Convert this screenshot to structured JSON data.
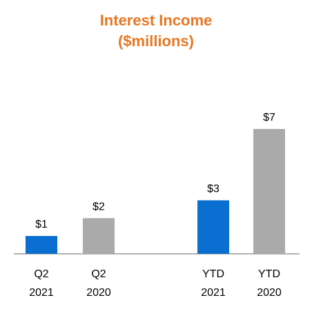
{
  "chart_data": {
    "type": "bar",
    "title": "Interest Income",
    "subtitle": "($millions)",
    "categories": [
      {
        "line1": "Q2",
        "line2": "2021"
      },
      {
        "line1": "Q2",
        "line2": "2020"
      },
      {
        "line1": "YTD",
        "line2": "2021"
      },
      {
        "line1": "YTD",
        "line2": "2020"
      }
    ],
    "values": [
      1,
      2,
      3,
      7
    ],
    "data_labels": [
      "$1",
      "$2",
      "$3",
      "$7"
    ],
    "bar_colors": [
      "#0a6fd1",
      "#aaaaaa",
      "#0a6fd1",
      "#aaaaaa"
    ],
    "title_color": "#e87722",
    "ylim": [
      0,
      7
    ],
    "grid": false,
    "legend": "none"
  }
}
